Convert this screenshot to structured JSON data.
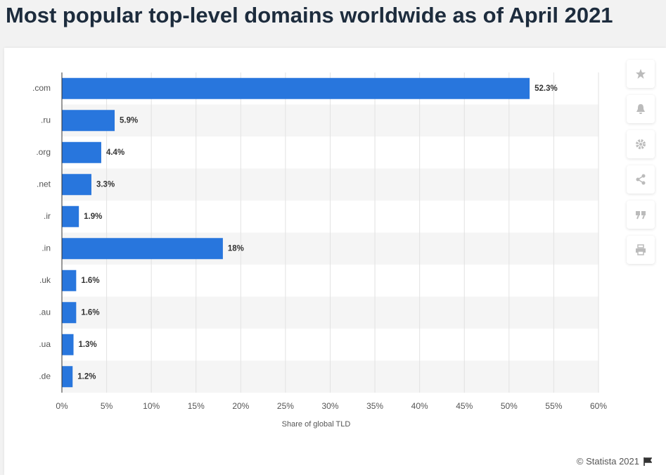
{
  "title": "Most popular top-level domains worldwide as of April 2021",
  "footer": "© Statista 2021",
  "chart_data": {
    "type": "bar",
    "orientation": "horizontal",
    "categories": [
      ".com",
      ".ru",
      ".org",
      ".net",
      ".ir",
      ".in",
      ".uk",
      ".au",
      ".ua",
      ".de"
    ],
    "values": [
      52.3,
      5.9,
      4.4,
      3.3,
      1.9,
      18,
      1.6,
      1.6,
      1.3,
      1.2
    ],
    "value_labels": [
      "52.3%",
      "5.9%",
      "4.4%",
      "3.3%",
      "1.9%",
      "18%",
      "1.6%",
      "1.6%",
      "1.3%",
      "1.2%"
    ],
    "color": "#2876dd",
    "x_label": "Share of global TLD",
    "xlim": [
      0,
      60
    ],
    "xticks": [
      {
        "value": 0,
        "label": "0%"
      },
      {
        "value": 5,
        "label": "5%"
      },
      {
        "value": 10,
        "label": "10%"
      },
      {
        "value": 15,
        "label": "15%"
      },
      {
        "value": 20,
        "label": "20%"
      },
      {
        "value": 25,
        "label": "25%"
      },
      {
        "value": 30,
        "label": "30%"
      },
      {
        "value": 35,
        "label": "35%"
      },
      {
        "value": 40,
        "label": "40%"
      },
      {
        "value": 45,
        "label": "45%"
      },
      {
        "value": 50,
        "label": "50%"
      },
      {
        "value": 55,
        "label": "55%"
      },
      {
        "value": 60,
        "label": "60%"
      }
    ],
    "grid": true
  }
}
